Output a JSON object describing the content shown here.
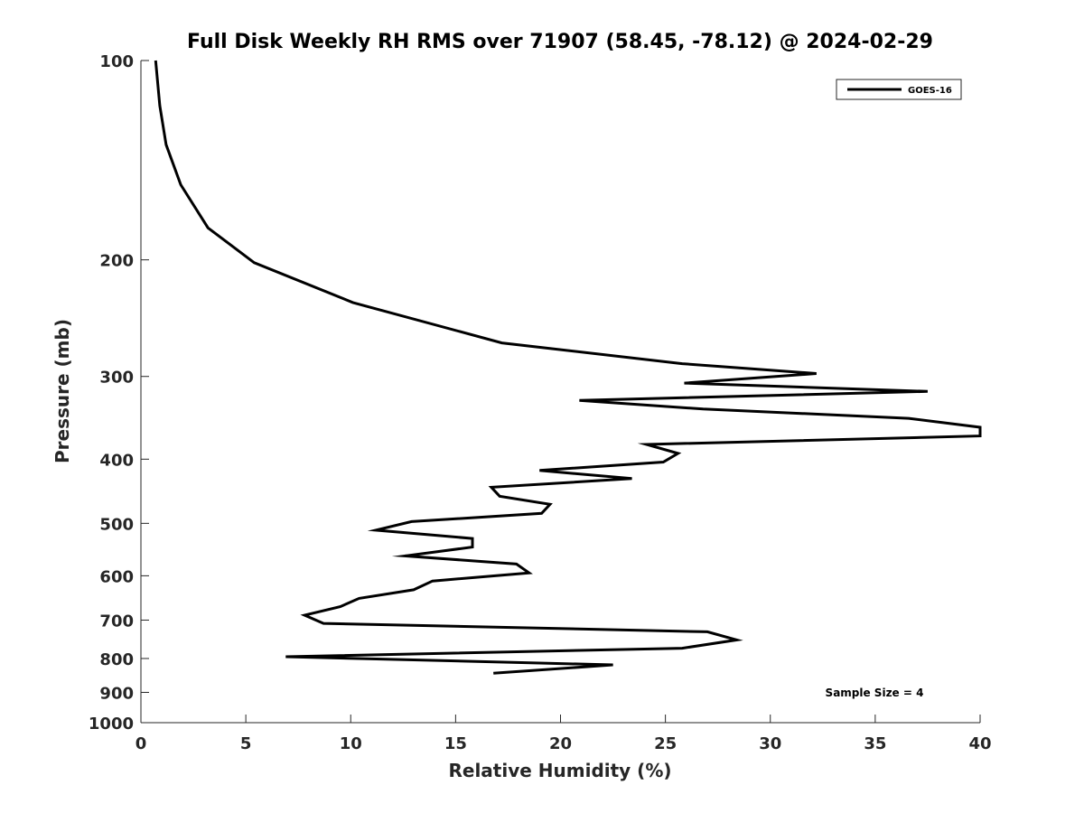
{
  "chart_data": {
    "type": "line",
    "title": "Full Disk Weekly RH RMS over 71907 (58.45, -78.12) @ 2024-02-29",
    "xlabel": "Relative Humidity (%)",
    "ylabel": "Pressure (mb)",
    "xlim": [
      0,
      40
    ],
    "ylim": [
      100,
      1000
    ],
    "y_scale": "log",
    "y_reversed": true,
    "grid": false,
    "legend_position": "top-right",
    "x_ticks": [
      0,
      5,
      10,
      15,
      20,
      25,
      30,
      35,
      40
    ],
    "y_ticks": [
      100,
      200,
      300,
      400,
      500,
      600,
      700,
      800,
      900,
      1000
    ],
    "annotation": "Sample Size = 4",
    "series": [
      {
        "name": "GOES-16",
        "color": "#000000",
        "points": [
          [
            0.7,
            100
          ],
          [
            0.9,
            117
          ],
          [
            1.2,
            134
          ],
          [
            1.9,
            154
          ],
          [
            3.2,
            179
          ],
          [
            5.4,
            202
          ],
          [
            10.1,
            232
          ],
          [
            17.2,
            267
          ],
          [
            25.8,
            287
          ],
          [
            32.2,
            297
          ],
          [
            25.9,
            307
          ],
          [
            37.5,
            316
          ],
          [
            20.9,
            326
          ],
          [
            26.8,
            336
          ],
          [
            36.6,
            347
          ],
          [
            40.0,
            358
          ],
          [
            40.0,
            369
          ],
          [
            24.1,
            380
          ],
          [
            25.6,
            392
          ],
          [
            24.9,
            404
          ],
          [
            19.0,
            416
          ],
          [
            23.4,
            428
          ],
          [
            16.7,
            441
          ],
          [
            17.1,
            455
          ],
          [
            19.5,
            468
          ],
          [
            19.1,
            483
          ],
          [
            12.9,
            497
          ],
          [
            11.2,
            512
          ],
          [
            15.8,
            527
          ],
          [
            15.8,
            543
          ],
          [
            12.6,
            560
          ],
          [
            17.9,
            576
          ],
          [
            18.5,
            594
          ],
          [
            13.9,
            611
          ],
          [
            13.0,
            630
          ],
          [
            10.4,
            649
          ],
          [
            9.5,
            668
          ],
          [
            7.8,
            688
          ],
          [
            8.7,
            708
          ],
          [
            27.0,
            729
          ],
          [
            28.4,
            750
          ],
          [
            25.8,
            772
          ],
          [
            6.9,
            795
          ],
          [
            22.5,
            818
          ],
          [
            16.8,
            842
          ]
        ]
      }
    ]
  }
}
